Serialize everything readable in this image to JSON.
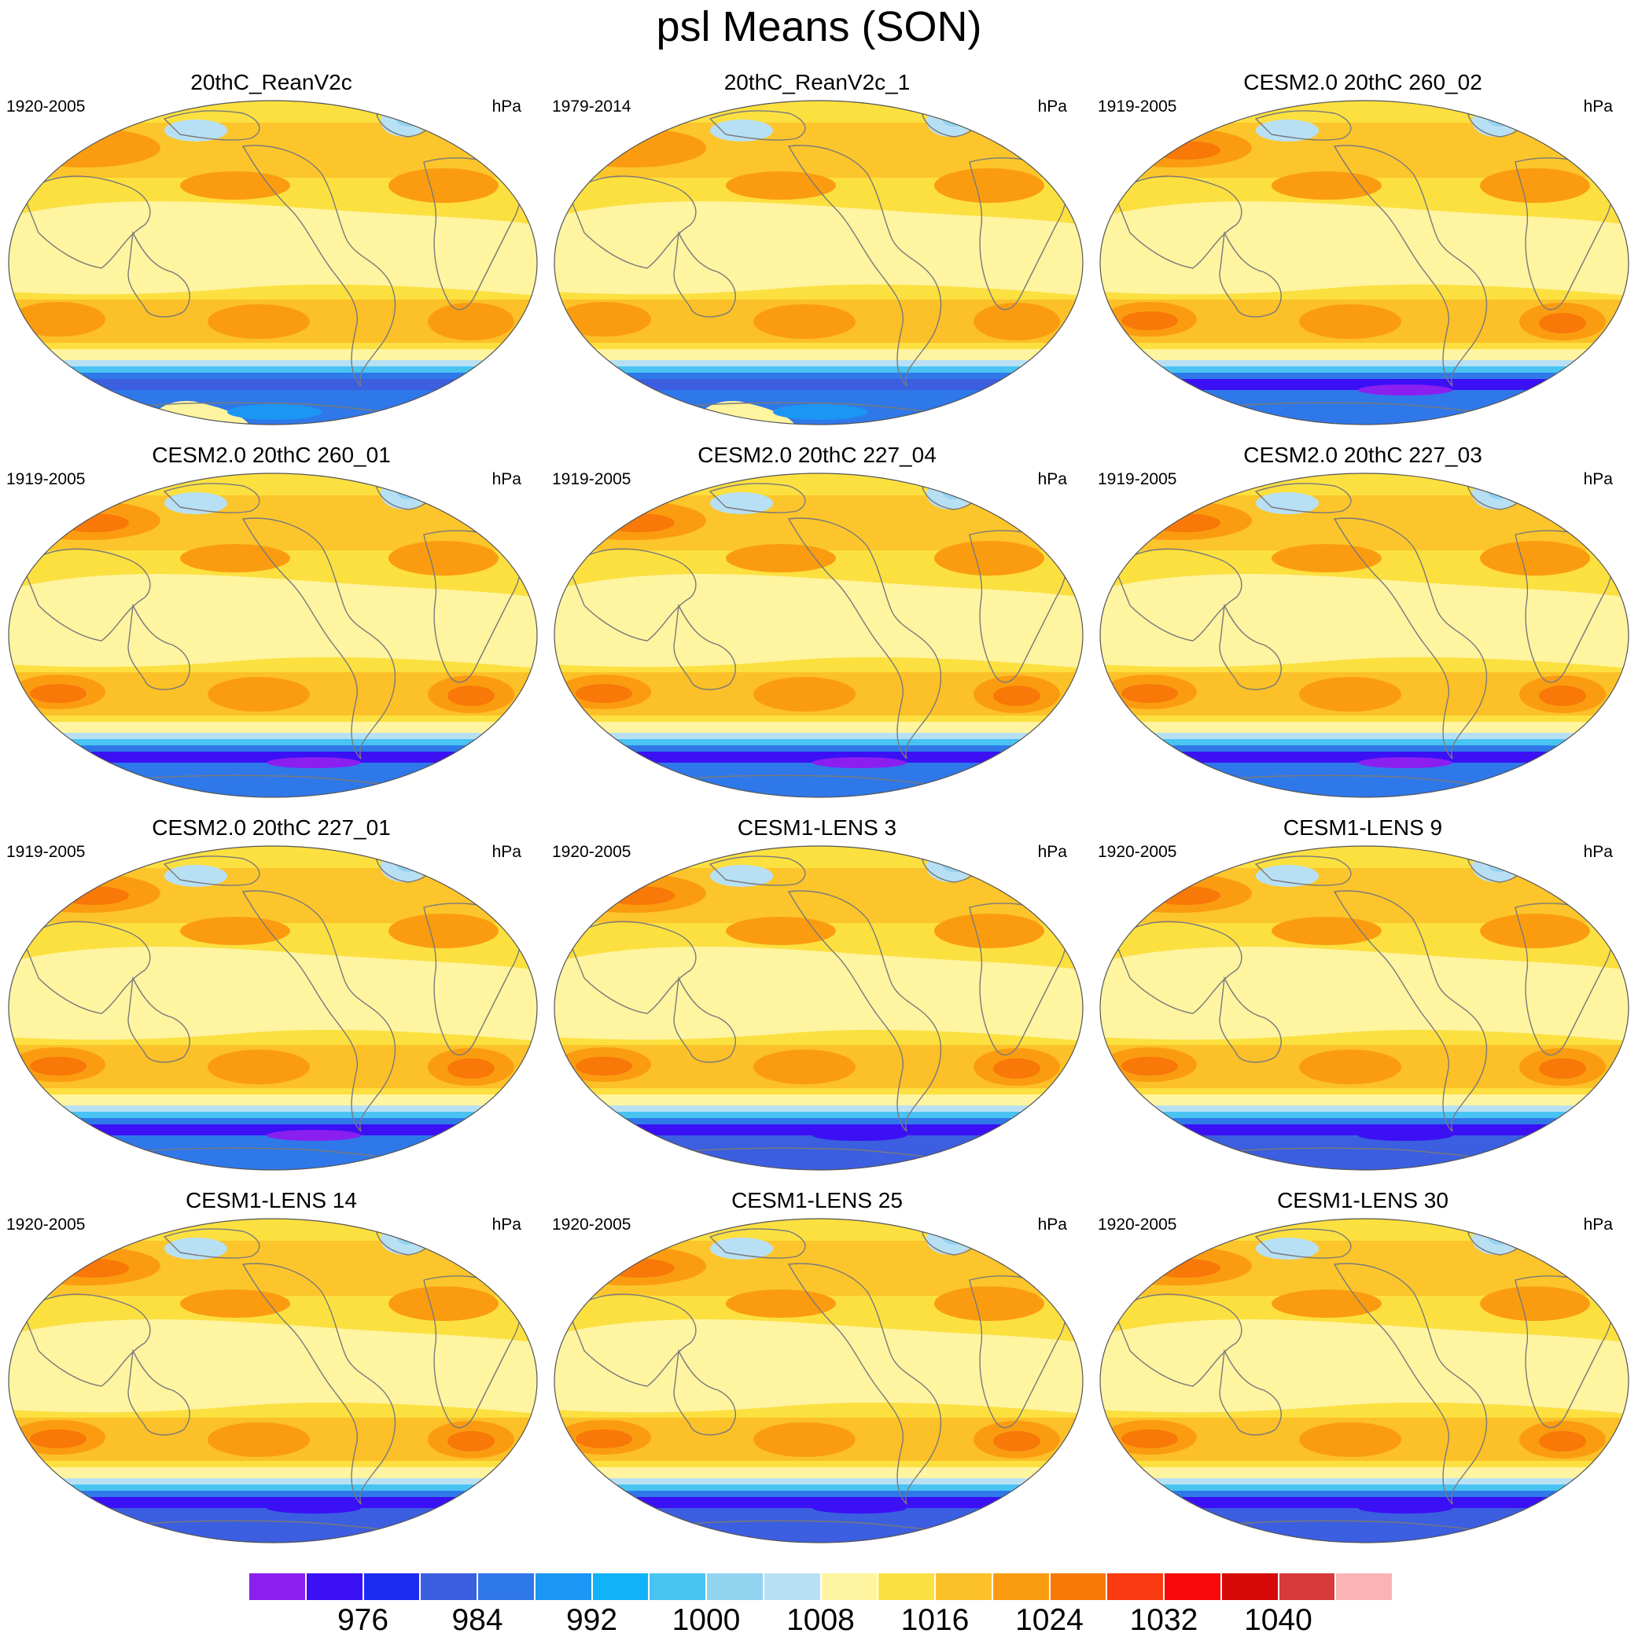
{
  "title": "psl Means (SON)",
  "panels": [
    {
      "title": "20thC_ReanV2c",
      "years": "1920-2005",
      "units": "hPa",
      "variant": "rean"
    },
    {
      "title": "20thC_ReanV2c_1",
      "years": "1979-2014",
      "units": "hPa",
      "variant": "rean"
    },
    {
      "title": "CESM2.0 20thC 260_02",
      "years": "1919-2005",
      "units": "hPa",
      "variant": "cesm2"
    },
    {
      "title": "CESM2.0 20thC 260_01",
      "years": "1919-2005",
      "units": "hPa",
      "variant": "cesm2"
    },
    {
      "title": "CESM2.0 20thC 227_04",
      "years": "1919-2005",
      "units": "hPa",
      "variant": "cesm2"
    },
    {
      "title": "CESM2.0 20thC 227_03",
      "years": "1919-2005",
      "units": "hPa",
      "variant": "cesm2"
    },
    {
      "title": "CESM2.0 20thC 227_01",
      "years": "1919-2005",
      "units": "hPa",
      "variant": "cesm2"
    },
    {
      "title": "CESM1-LENS 3",
      "years": "1920-2005",
      "units": "hPa",
      "variant": "lens"
    },
    {
      "title": "CESM1-LENS 9",
      "years": "1920-2005",
      "units": "hPa",
      "variant": "lens"
    },
    {
      "title": "CESM1-LENS 14",
      "years": "1920-2005",
      "units": "hPa",
      "variant": "lens"
    },
    {
      "title": "CESM1-LENS 25",
      "years": "1920-2005",
      "units": "hPa",
      "variant": "lens"
    },
    {
      "title": "CESM1-LENS 30",
      "years": "1920-2005",
      "units": "hPa",
      "variant": "lens"
    }
  ],
  "colorbar": {
    "colors": [
      "#8a1ff0",
      "#3b10f5",
      "#1b2cf0",
      "#3c5ee0",
      "#2f78ea",
      "#1c96f5",
      "#10b3f7",
      "#48c3f2",
      "#92d3f0",
      "#b8e0f5",
      "#fff4a0",
      "#fce040",
      "#fcc028",
      "#fb9c10",
      "#f87808",
      "#fa3a10",
      "#f80808",
      "#d60808",
      "#d83a3a",
      "#fab4b4"
    ],
    "labels": [
      "976",
      "984",
      "992",
      "1000",
      "1008",
      "1016",
      "1024",
      "1032",
      "1040"
    ],
    "label_values": [
      976,
      984,
      992,
      1000,
      1008,
      1016,
      1024,
      1032,
      1040
    ]
  }
}
